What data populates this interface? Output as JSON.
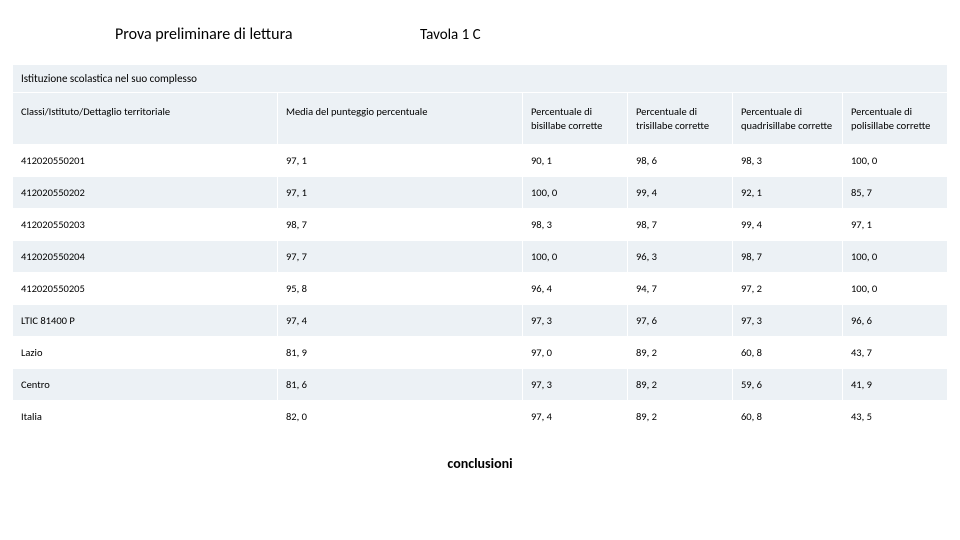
{
  "header": {
    "title_left": "Prova preliminare di lettura",
    "title_right": "Tavola 1 C"
  },
  "table": {
    "section_label": "Istituzione scolastica nel suo complesso",
    "columns": [
      "Classi/Istituto/Dettaglio territoriale",
      "Media del punteggio percentuale",
      "Percentuale di bisillabe corrette",
      "Percentuale di trisillabe corrette",
      "Percentuale di quadrisillabe corrette",
      "Percentuale di polisillabe corrette"
    ],
    "rows": [
      [
        "412020550201",
        "97, 1",
        "90, 1",
        "98, 6",
        "98, 3",
        "100, 0"
      ],
      [
        "412020550202",
        "97, 1",
        "100, 0",
        "99, 4",
        "92, 1",
        "85, 7"
      ],
      [
        "412020550203",
        "98, 7",
        "98, 3",
        "98, 7",
        "99, 4",
        "97, 1"
      ],
      [
        "412020550204",
        "97, 7",
        "100, 0",
        "96, 3",
        "98, 7",
        "100, 0"
      ],
      [
        "412020550205",
        "95, 8",
        "96, 4",
        "94, 7",
        "97, 2",
        "100, 0"
      ],
      [
        "LTIC 81400 P",
        "97, 4",
        "97, 3",
        "97, 6",
        "97, 3",
        "96, 6"
      ],
      [
        "Lazio",
        "81, 9",
        "97, 0",
        "89, 2",
        "60, 8",
        "43, 7"
      ],
      [
        "Centro",
        "81, 6",
        "97, 3",
        "89, 2",
        "59, 6",
        "41, 9"
      ],
      [
        "Italia",
        "82, 0",
        "97, 4",
        "89, 2",
        "60, 8",
        "43, 5"
      ]
    ]
  },
  "footer": {
    "text": "conclusioni"
  },
  "style": {
    "header_bg": "#ecf1f5",
    "row_alt_bg": "#ecf1f5",
    "row_bg": "#ffffff",
    "text_color": "#000000",
    "border_color": "#ffffff"
  }
}
